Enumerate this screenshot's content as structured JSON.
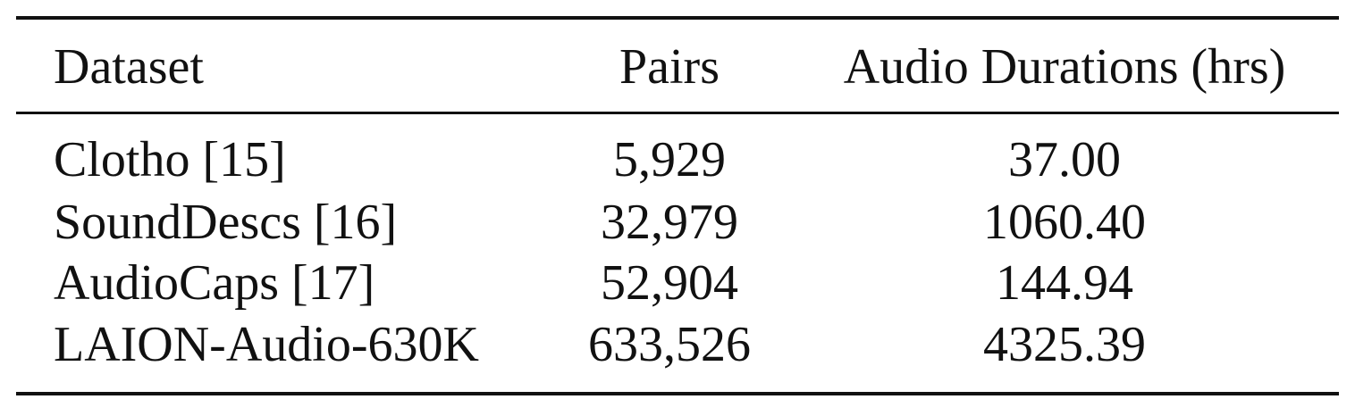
{
  "table": {
    "headers": {
      "dataset": "Dataset",
      "pairs": "Pairs",
      "durations": "Audio Durations (hrs)"
    },
    "rows": [
      {
        "dataset": "Clotho [15]",
        "pairs": "5,929",
        "durations": "37.00"
      },
      {
        "dataset": "SoundDescs [16]",
        "pairs": "32,979",
        "durations": "1060.40"
      },
      {
        "dataset": "AudioCaps [17]",
        "pairs": "52,904",
        "durations": "144.94"
      },
      {
        "dataset": "LAION-Audio-630K",
        "pairs": "633,526",
        "durations": "4325.39"
      }
    ]
  }
}
